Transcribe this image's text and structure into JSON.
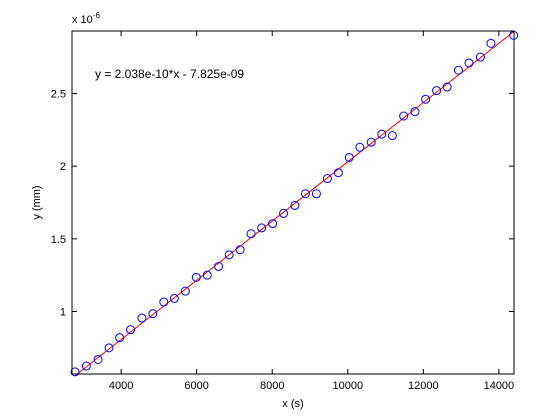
{
  "chart_data": {
    "type": "scatter",
    "xlabel": "x (s)",
    "ylabel": "y (mm)",
    "y_multiplier_label": "x 10",
    "y_multiplier_exponent": "-6",
    "xlim": [
      2700,
      14400
    ],
    "ylim": [
      5.7e-07,
      2.93e-06
    ],
    "x_ticks": [
      4000,
      6000,
      8000,
      10000,
      12000,
      14000
    ],
    "x_tick_labels": [
      "4000",
      "6000",
      "8000",
      "10000",
      "12000",
      "14000"
    ],
    "y_ticks": [
      1e-06,
      1.5e-06,
      2e-06,
      2.5e-06
    ],
    "y_tick_labels": [
      "1",
      "1.5",
      "2",
      "2.5"
    ],
    "grid": false,
    "annotation": "y = 2.038e-10*x - 7.825e-09",
    "fit": {
      "slope": 2.038e-10,
      "intercept": -7.825e-09,
      "color": "#ff0000"
    },
    "marker_color": "#0000ff",
    "points": {
      "x": [
        2780,
        3080,
        3390,
        3680,
        3960,
        4250,
        4550,
        4840,
        5130,
        5410,
        5700,
        5990,
        6280,
        6580,
        6860,
        7150,
        7440,
        7720,
        8010,
        8300,
        8600,
        8880,
        9170,
        9460,
        9750,
        10040,
        10320,
        10620,
        10900,
        11180,
        11480,
        11780,
        12060,
        12350,
        12630,
        12930,
        13210,
        13510,
        13790,
        14390
      ],
      "y": [
        5.85e-07,
        6.25e-07,
        6.7e-07,
        7.5e-07,
        8.2e-07,
        8.75e-07,
        9.55e-07,
        9.85e-07,
        1.065e-06,
        1.09e-06,
        1.14e-06,
        1.235e-06,
        1.25e-06,
        1.31e-06,
        1.39e-06,
        1.425e-06,
        1.535e-06,
        1.575e-06,
        1.605e-06,
        1.675e-06,
        1.73e-06,
        1.81e-06,
        1.81e-06,
        1.915e-06,
        1.955e-06,
        2.06e-06,
        2.13e-06,
        2.165e-06,
        2.22e-06,
        2.21e-06,
        2.345e-06,
        2.375e-06,
        2.46e-06,
        2.52e-06,
        2.545e-06,
        2.66e-06,
        2.71e-06,
        2.75e-06,
        2.845e-06,
        2.9e-06
      ]
    }
  }
}
